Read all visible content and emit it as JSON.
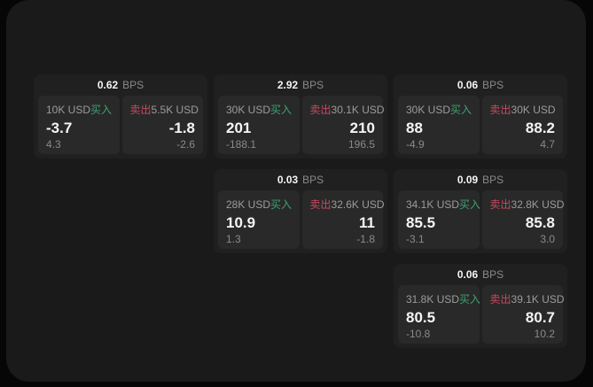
{
  "labels": {
    "bps": "BPS",
    "buy": "买入",
    "sell": "卖出"
  },
  "colors": {
    "background": "#060606",
    "panel": "#1a1a1a",
    "card": "#202020",
    "pane": "#292929",
    "buy_accent": "#3da26d",
    "sell_accent": "#c7495f",
    "value_text": "#f5f5f5",
    "muted_text": "#8a8a8a"
  },
  "cards": [
    {
      "bps": "0.62",
      "buy": {
        "amount": "10K USD",
        "value": "-3.7",
        "delta": "4.3"
      },
      "sell": {
        "amount": "5.5K USD",
        "value": "-1.8",
        "delta": "-2.6"
      }
    },
    {
      "bps": "2.92",
      "buy": {
        "amount": "30K USD",
        "value": "201",
        "delta": "-188.1"
      },
      "sell": {
        "amount": "30.1K USD",
        "value": "210",
        "delta": "196.5"
      }
    },
    {
      "bps": "0.06",
      "buy": {
        "amount": "30K USD",
        "value": "88",
        "delta": "-4.9"
      },
      "sell": {
        "amount": "30K USD",
        "value": "88.2",
        "delta": "4.7"
      }
    },
    {
      "bps": "0.03",
      "buy": {
        "amount": "28K USD",
        "value": "10.9",
        "delta": "1.3"
      },
      "sell": {
        "amount": "32.6K USD",
        "value": "11",
        "delta": "-1.8"
      }
    },
    {
      "bps": "0.09",
      "buy": {
        "amount": "34.1K USD",
        "value": "85.5",
        "delta": "-3.1"
      },
      "sell": {
        "amount": "32.8K USD",
        "value": "85.8",
        "delta": "3.0"
      }
    },
    {
      "bps": "0.06",
      "buy": {
        "amount": "31.8K USD",
        "value": "80.5",
        "delta": "-10.8"
      },
      "sell": {
        "amount": "39.1K USD",
        "value": "80.7",
        "delta": "10.2"
      }
    }
  ]
}
